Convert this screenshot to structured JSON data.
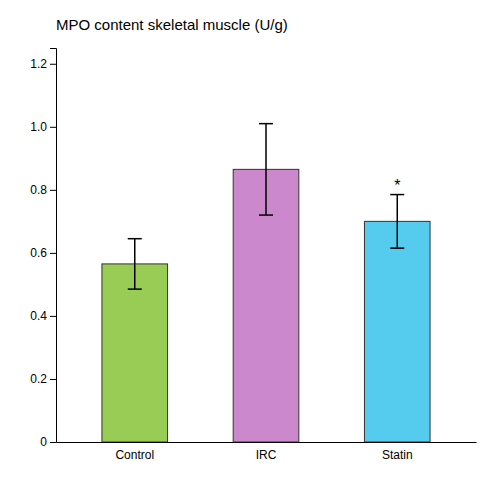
{
  "chart_data": {
    "type": "bar",
    "title": "MPO content skeletal muscle (U/g)",
    "categories": [
      "Control",
      "IRC",
      "Statin"
    ],
    "values": [
      0.565,
      0.865,
      0.7
    ],
    "errors": [
      0.08,
      0.145,
      0.085
    ],
    "colors": [
      "#99cc55",
      "#cc88cc",
      "#55ccee"
    ],
    "ylim": [
      0,
      1.25
    ],
    "yticks": [
      0,
      0.2,
      0.4,
      0.6,
      0.8,
      {
        "value": 1.0,
        "label": "1.0"
      },
      1.2
    ],
    "annotations": [
      {
        "text": "*",
        "category": "Statin"
      }
    ],
    "grid": false
  }
}
